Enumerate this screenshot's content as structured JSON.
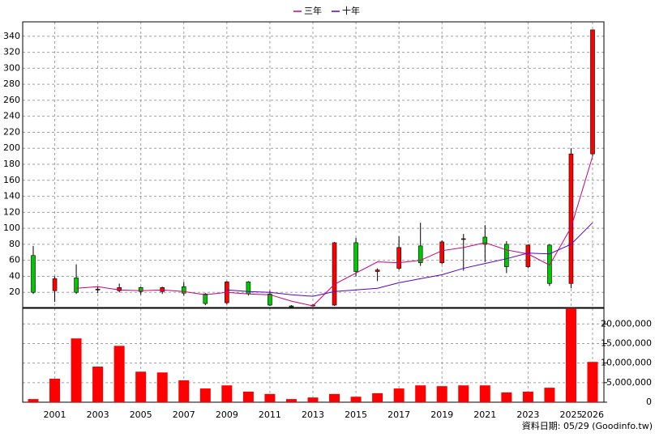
{
  "chart_data": {
    "type": "candlestick",
    "categories": [
      null,
      "2001",
      null,
      "2003",
      null,
      "2005",
      null,
      "2007",
      null,
      "2009",
      null,
      "2011",
      null,
      "2013",
      null,
      "2015",
      null,
      "2017",
      null,
      "2019",
      null,
      "2021",
      null,
      "2023",
      null,
      "2025",
      "2026"
    ],
    "open": [
      66,
      22,
      38,
      23,
      22,
      26,
      21,
      27,
      18,
      7,
      33,
      18,
      3,
      3,
      4,
      82,
      46,
      50,
      78,
      57,
      86,
      89,
      80,
      52,
      79,
      31,
      193
    ],
    "close": [
      20,
      37,
      20,
      24,
      26,
      21,
      26,
      19,
      6,
      33,
      18,
      4,
      2,
      4,
      82,
      46,
      48,
      76,
      57,
      83,
      87,
      80,
      52,
      79,
      31,
      193,
      348
    ],
    "high": [
      78,
      40,
      55,
      27,
      31,
      27,
      27,
      33,
      19,
      34,
      34,
      22,
      4,
      5,
      83,
      88,
      50,
      90,
      107,
      85,
      93,
      104,
      84,
      80,
      80,
      200,
      348
    ],
    "low": [
      18,
      8,
      18,
      19,
      20,
      17,
      18,
      16,
      4,
      5,
      16,
      3,
      1,
      2,
      3,
      40,
      34,
      48,
      53,
      55,
      47,
      58,
      44,
      50,
      28,
      25,
      190
    ],
    "up_color": "#ff0000",
    "down_color": "#00c800",
    "ma": [
      {
        "name": "三年",
        "color": "#cc0077",
        "values": [
          null,
          null,
          25,
          27,
          23,
          22,
          23,
          21,
          17,
          20,
          18,
          17,
          9,
          3,
          30,
          44,
          58,
          57,
          60,
          72,
          76,
          82,
          73,
          68,
          54,
          101,
          190
        ]
      },
      {
        "name": "十年",
        "color": "#5a00cc",
        "values": [
          null,
          null,
          null,
          null,
          null,
          null,
          null,
          null,
          null,
          23,
          21,
          20,
          17,
          15,
          21,
          23,
          25,
          32,
          37,
          42,
          50,
          56,
          62,
          69,
          68,
          80,
          107
        ]
      }
    ],
    "ylim": [
      0,
      358
    ],
    "yticks": [
      20,
      40,
      60,
      80,
      100,
      120,
      140,
      160,
      180,
      200,
      220,
      240,
      260,
      280,
      300,
      320,
      340
    ],
    "volume": {
      "color": "#ff0000",
      "values": [
        800000,
        6000000,
        16300000,
        9100000,
        14400000,
        7800000,
        7600000,
        5600000,
        3500000,
        4300000,
        2700000,
        2100000,
        800000,
        1200000,
        2100000,
        1400000,
        2300000,
        3500000,
        4300000,
        4100000,
        4300000,
        4300000,
        2500000,
        2700000,
        3700000,
        24000000,
        10300000
      ],
      "ylim": [
        0,
        24200000
      ],
      "yticks": [
        {
          "value": 0,
          "label": "0"
        },
        {
          "value": 5000000,
          "label": "5,000,000"
        },
        {
          "value": 10000000,
          "label": "10,000,000"
        },
        {
          "value": 15000000,
          "label": "15,000,000"
        },
        {
          "value": 20000000,
          "label": "20,000,000"
        }
      ]
    },
    "grid": true,
    "footer": "資料日期: 05/29 (Goodinfo.tw)"
  }
}
